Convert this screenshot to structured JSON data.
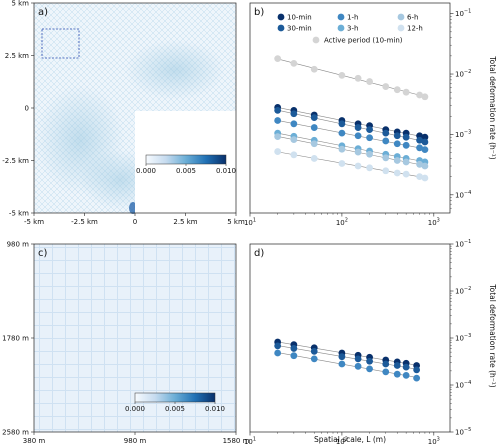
{
  "chart_data": [
    {
      "panel": "a)",
      "type": "heatmap",
      "x_ticks": [
        "-5 km",
        "-2.5 km",
        "0",
        "2.5 km",
        "5 km"
      ],
      "y_ticks": [
        "5 km",
        "2.5 km",
        "0",
        "-2.5 km",
        "-5 km"
      ],
      "colorbar": {
        "ticks": [
          "0.000",
          "0.005",
          "0.010"
        ],
        "range": [
          0,
          0.01
        ]
      },
      "cmap": [
        "#f7fbff",
        "#c6dbef",
        "#6baed6",
        "#2171b5",
        "#08306b"
      ]
    },
    {
      "panel": "b)",
      "type": "scatter",
      "x_scale": "log",
      "y_scale": "log",
      "xlim": [
        10,
        1500
      ],
      "ylim": [
        5e-05,
        0.15
      ],
      "x_ticks": [
        {
          "v": 10,
          "base": "10",
          "exp": "1"
        },
        {
          "v": 100,
          "base": "10",
          "exp": "2"
        },
        {
          "v": 1000,
          "base": "10",
          "exp": "3"
        }
      ],
      "y_ticks": [
        {
          "v": 0.0001,
          "base": "10",
          "exp": "−4"
        },
        {
          "v": 0.001,
          "base": "10",
          "exp": "−3"
        },
        {
          "v": 0.01,
          "base": "10",
          "exp": "−2"
        },
        {
          "v": 0.1,
          "base": "10",
          "exp": "−1"
        }
      ],
      "ylabel": "Total deformation rate (h⁻¹)",
      "legend_position": "top",
      "x": [
        20,
        30,
        50,
        100,
        150,
        200,
        300,
        400,
        500,
        700,
        800
      ],
      "series": [
        {
          "name": "10-min",
          "color": "#08306b",
          "values": [
            0.0028,
            0.0025,
            0.0021,
            0.0017,
            0.0015,
            0.0014,
            0.0012,
            0.0011,
            0.00105,
            0.00095,
            0.0009
          ]
        },
        {
          "name": "30-min",
          "color": "#1c5a99",
          "values": [
            0.0025,
            0.0022,
            0.0019,
            0.0015,
            0.0013,
            0.0012,
            0.00105,
            0.00095,
            0.0009,
            0.0008,
            0.00075
          ]
        },
        {
          "name": "1-h",
          "color": "#3f87c2",
          "values": [
            0.0017,
            0.0015,
            0.0013,
            0.00105,
            0.00095,
            0.00088,
            0.00078,
            0.0007,
            0.00066,
            0.0006,
            0.00056
          ]
        },
        {
          "name": "3-h",
          "color": "#6baed6",
          "values": [
            0.00105,
            0.00093,
            0.0008,
            0.00065,
            0.00058,
            0.00053,
            0.00047,
            0.00043,
            0.0004,
            0.00037,
            0.00035
          ]
        },
        {
          "name": "6-h",
          "color": "#a6c8e0",
          "values": [
            0.00092,
            0.00082,
            0.0007,
            0.00057,
            0.00051,
            0.00047,
            0.00041,
            0.00037,
            0.00035,
            0.00032,
            0.0003
          ]
        },
        {
          "name": "12-h",
          "color": "#d0e1ef",
          "values": [
            0.00052,
            0.00046,
            0.0004,
            0.00033,
            0.0003,
            0.00028,
            0.00025,
            0.00023,
            0.00022,
            0.0002,
            0.00019
          ]
        },
        {
          "name": "Active period (10-min)",
          "color": "#d4d4d4",
          "values": [
            0.018,
            0.015,
            0.012,
            0.0095,
            0.0085,
            0.0075,
            0.0062,
            0.0055,
            0.005,
            0.0045,
            0.0042
          ]
        }
      ]
    },
    {
      "panel": "c)",
      "type": "heatmap",
      "x_ticks": [
        "380 m",
        "980 m",
        "1580 m"
      ],
      "y_ticks": [
        "980 m",
        "1780 m",
        "2580 m"
      ],
      "colorbar": {
        "ticks": [
          "0.000",
          "0.005",
          "0.010"
        ],
        "range": [
          0,
          0.01
        ]
      },
      "cmap": [
        "#f7fbff",
        "#c6dbef",
        "#6baed6",
        "#2171b5",
        "#08306b"
      ]
    },
    {
      "panel": "d)",
      "type": "scatter",
      "x_scale": "log",
      "y_scale": "log",
      "xlim": [
        10,
        1500
      ],
      "ylim": [
        1e-05,
        0.1
      ],
      "x_ticks": [
        {
          "v": 10,
          "base": "10",
          "exp": "1"
        },
        {
          "v": 100,
          "base": "10",
          "exp": "2"
        },
        {
          "v": 1000,
          "base": "10",
          "exp": "3"
        }
      ],
      "y_ticks": [
        {
          "v": 1e-05,
          "base": "10",
          "exp": "−5"
        },
        {
          "v": 0.0001,
          "base": "10",
          "exp": "−4"
        },
        {
          "v": 0.001,
          "base": "10",
          "exp": "−3"
        },
        {
          "v": 0.01,
          "base": "10",
          "exp": "−2"
        },
        {
          "v": 0.1,
          "base": "10",
          "exp": "−1"
        }
      ],
      "xlabel": "Spatial scale, L (m)",
      "ylabel": "Total deformation rate (h⁻¹)",
      "x": [
        20,
        30,
        50,
        100,
        150,
        200,
        300,
        400,
        500,
        650
      ],
      "series": [
        {
          "color": "#08306b",
          "values": [
            0.00082,
            0.00072,
            0.00062,
            0.00048,
            0.00043,
            0.00039,
            0.00034,
            0.00031,
            0.00029,
            0.00026
          ]
        },
        {
          "color": "#1c5a99",
          "values": [
            0.00068,
            0.0006,
            0.00052,
            0.0004,
            0.00036,
            0.00032,
            0.00028,
            0.00026,
            0.00024,
            0.00021
          ]
        },
        {
          "color": "#3f87c2",
          "values": [
            0.00048,
            0.00042,
            0.00036,
            0.00028,
            0.00025,
            0.00022,
            0.00019,
            0.00017,
            0.00016,
            0.00014
          ]
        }
      ]
    }
  ]
}
